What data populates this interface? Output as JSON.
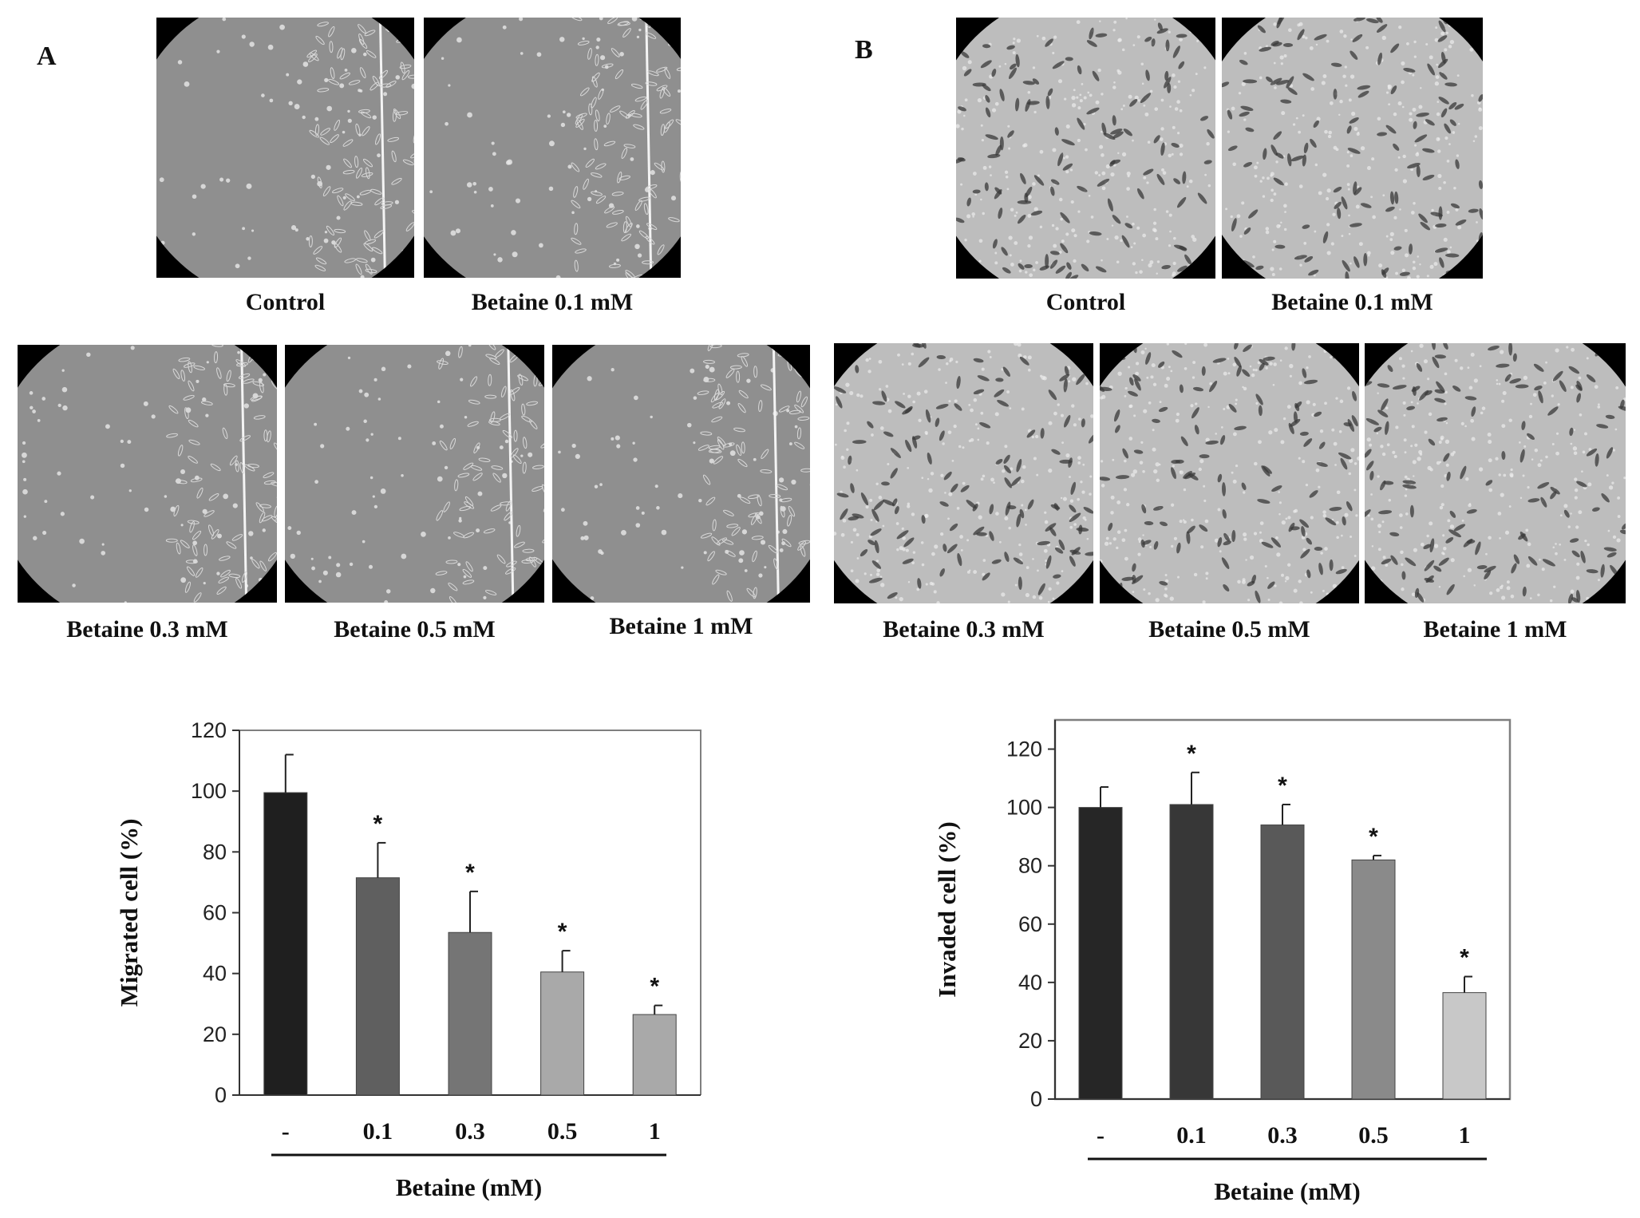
{
  "panel_a": {
    "letter": "A",
    "images": [
      {
        "label": "Control"
      },
      {
        "label": "Betaine 0.1 mM"
      },
      {
        "label": "Betaine 0.3 mM"
      },
      {
        "label": "Betaine 0.5 mM"
      },
      {
        "label": "Betaine 1 mM"
      }
    ]
  },
  "panel_b": {
    "letter": "B",
    "images": [
      {
        "label": "Control"
      },
      {
        "label": "Betaine 0.1 mM"
      },
      {
        "label": "Betaine 0.3 mM"
      },
      {
        "label": "Betaine 0.5 mM"
      },
      {
        "label": "Betaine 1 mM"
      }
    ]
  },
  "colors": {
    "micro_bg_a": "#8f8f8f",
    "micro_bg_b": "#bdbdbd",
    "cell_a": "#e8e8e8",
    "cell_b": "#3a3a3a"
  },
  "chart_data": [
    {
      "type": "bar",
      "categories": [
        "-",
        "0.1",
        "0.3",
        "0.5",
        "1"
      ],
      "values": [
        99.5,
        71.5,
        53.5,
        40.5,
        26.5
      ],
      "errors": [
        12.5,
        11.5,
        13.5,
        7.0,
        3.0
      ],
      "significance": [
        "",
        "*",
        "*",
        "*",
        "*"
      ],
      "bar_colors": [
        "#1f1f1f",
        "#5f5f5f",
        "#757575",
        "#a9a9a9",
        "#a9a9a9"
      ],
      "xlabel": "Betaine (mM)",
      "ylabel": "Migrated cell (%)",
      "ylim": [
        0,
        120
      ],
      "yticks": [
        0,
        20,
        40,
        60,
        80,
        100,
        120
      ],
      "grid": false
    },
    {
      "type": "bar",
      "categories": [
        "-",
        "0.1",
        "0.3",
        "0.5",
        "1"
      ],
      "values": [
        100,
        101,
        94,
        82,
        36.5
      ],
      "errors": [
        7,
        11,
        7,
        1.5,
        5.5
      ],
      "significance": [
        "",
        "*",
        "*",
        "*",
        "*"
      ],
      "bar_colors": [
        "#262626",
        "#373737",
        "#595959",
        "#8a8a8a",
        "#c8c8c8"
      ],
      "xlabel": "Betaine (mM)",
      "ylabel": "Invaded cell (%)",
      "ylim": [
        0,
        130
      ],
      "yticks": [
        0,
        20,
        40,
        60,
        80,
        100,
        120
      ],
      "grid": false
    }
  ]
}
